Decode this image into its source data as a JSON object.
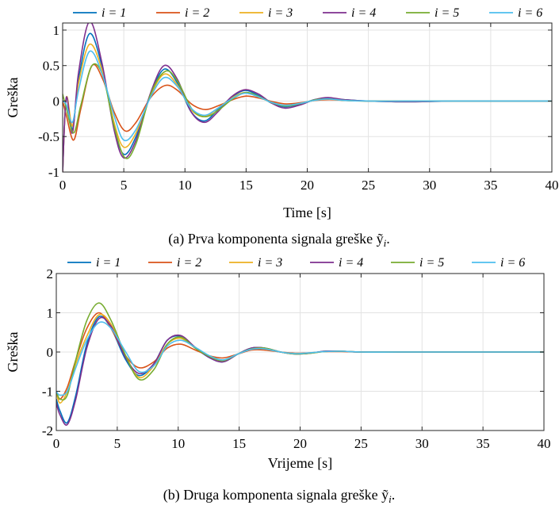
{
  "chart_data": [
    {
      "type": "line",
      "xlabel": "Time [s]",
      "ylabel": "Greška",
      "xlim": [
        0,
        40
      ],
      "ylim": [
        -1,
        1.1
      ],
      "xticks": [
        "0",
        "5",
        "10",
        "15",
        "20",
        "25",
        "30",
        "35",
        "40"
      ],
      "yticks": [
        "-1",
        "-0.5",
        "0",
        "0.5",
        "1"
      ],
      "grid": true,
      "legend_placement": "top",
      "caption": "(a) Prva komponenta signala greške ỹ",
      "caption_sub": "i",
      "series": [
        {
          "name": "i = 1",
          "x": [
            0,
            0.3,
            0.8,
            1.3,
            2.2,
            3.2,
            4.2,
            5.0,
            6.0,
            7.2,
            8.3,
            9.4,
            10.5,
            11.6,
            12.7,
            13.8,
            14.9,
            16.0,
            17.1,
            18.2,
            19.5,
            20.6,
            21.7,
            23.0,
            25,
            28,
            32,
            36,
            40
          ],
          "y": [
            -1.0,
            0.05,
            -0.4,
            0.3,
            0.95,
            0.5,
            -0.35,
            -0.75,
            -0.5,
            0.1,
            0.45,
            0.25,
            -0.15,
            -0.28,
            -0.12,
            0.05,
            0.15,
            0.08,
            -0.03,
            -0.08,
            -0.04,
            0.02,
            0.04,
            0.02,
            0.0,
            -0.01,
            0.0,
            0.0,
            0.0
          ]
        },
        {
          "name": "i = 2",
          "x": [
            0,
            0.3,
            0.9,
            1.5,
            2.4,
            3.3,
            4.2,
            5.1,
            6.0,
            7.2,
            8.4,
            9.4,
            10.6,
            11.7,
            12.8,
            13.9,
            15.0,
            16.1,
            17.2,
            18.3,
            19.6,
            20.7,
            21.8,
            23.0,
            25,
            28,
            32,
            36,
            40
          ],
          "y": [
            0.0,
            -0.2,
            -0.55,
            -0.1,
            0.5,
            0.3,
            -0.15,
            -0.42,
            -0.3,
            0.05,
            0.22,
            0.15,
            -0.05,
            -0.12,
            -0.06,
            0.02,
            0.07,
            0.04,
            -0.01,
            -0.04,
            -0.02,
            0.01,
            0.02,
            0.01,
            0.0,
            0.0,
            0.0,
            0.0,
            0.0
          ]
        },
        {
          "name": "i = 3",
          "x": [
            0,
            0.3,
            0.8,
            1.3,
            2.2,
            3.2,
            4.2,
            5.0,
            6.0,
            7.2,
            8.3,
            9.4,
            10.5,
            11.6,
            12.7,
            13.8,
            14.9,
            16.0,
            17.1,
            18.2,
            19.5,
            20.6,
            21.7,
            23.0,
            25,
            28,
            32,
            36,
            40
          ],
          "y": [
            -1.0,
            0.05,
            -0.35,
            0.25,
            0.8,
            0.45,
            -0.3,
            -0.65,
            -0.45,
            0.08,
            0.38,
            0.22,
            -0.12,
            -0.22,
            -0.1,
            0.04,
            0.12,
            0.06,
            -0.02,
            -0.07,
            -0.03,
            0.01,
            0.03,
            0.01,
            0.0,
            0.0,
            0.0,
            0.0,
            0.0
          ]
        },
        {
          "name": "i = 4",
          "x": [
            0,
            0.3,
            0.8,
            1.3,
            2.2,
            3.2,
            4.2,
            5.0,
            6.0,
            7.2,
            8.3,
            9.4,
            10.5,
            11.6,
            12.7,
            13.8,
            14.9,
            16.0,
            17.1,
            18.2,
            19.5,
            20.6,
            21.7,
            23.0,
            25,
            28,
            32,
            36,
            40
          ],
          "y": [
            -1.0,
            0.05,
            -0.45,
            0.4,
            1.12,
            0.55,
            -0.4,
            -0.8,
            -0.55,
            0.12,
            0.5,
            0.3,
            -0.15,
            -0.3,
            -0.15,
            0.06,
            0.16,
            0.1,
            -0.03,
            -0.1,
            -0.05,
            0.02,
            0.05,
            0.02,
            0.0,
            -0.01,
            0.0,
            0.0,
            0.0
          ]
        },
        {
          "name": "i = 5",
          "x": [
            0,
            0.3,
            0.9,
            1.5,
            2.4,
            3.3,
            4.2,
            5.1,
            6.0,
            7.2,
            8.4,
            9.4,
            10.6,
            11.7,
            12.8,
            13.9,
            15.0,
            16.1,
            17.2,
            18.3,
            19.6,
            20.7,
            21.8,
            23.0,
            25,
            28,
            32,
            36,
            40
          ],
          "y": [
            0.1,
            -0.1,
            -0.45,
            -0.05,
            0.5,
            0.35,
            -0.35,
            -0.8,
            -0.6,
            0.1,
            0.42,
            0.28,
            -0.12,
            -0.22,
            -0.12,
            0.03,
            0.12,
            0.06,
            -0.03,
            -0.07,
            -0.03,
            0.02,
            0.03,
            0.01,
            0.0,
            0.0,
            0.0,
            0.0,
            0.0
          ]
        },
        {
          "name": "i = 6",
          "x": [
            0,
            0.3,
            0.8,
            1.3,
            2.2,
            3.2,
            4.2,
            5.0,
            6.0,
            7.2,
            8.3,
            9.4,
            10.5,
            11.6,
            12.7,
            13.8,
            14.9,
            16.0,
            17.1,
            18.2,
            19.5,
            20.6,
            21.7,
            23.0,
            25,
            28,
            32,
            36,
            40
          ],
          "y": [
            0.0,
            -0.05,
            -0.3,
            0.15,
            0.7,
            0.4,
            -0.2,
            -0.55,
            -0.4,
            0.06,
            0.33,
            0.2,
            -0.1,
            -0.2,
            -0.1,
            0.03,
            0.11,
            0.06,
            -0.02,
            -0.06,
            -0.03,
            0.01,
            0.03,
            0.01,
            0.0,
            0.0,
            0.0,
            0.0,
            0.0
          ]
        }
      ]
    },
    {
      "type": "line",
      "xlabel": "Vrijeme [s]",
      "ylabel": "Greška",
      "xlim": [
        0,
        40
      ],
      "ylim": [
        -2,
        2
      ],
      "xticks": [
        "0",
        "5",
        "10",
        "15",
        "20",
        "25",
        "30",
        "35",
        "40"
      ],
      "yticks": [
        "-2",
        "-1",
        "0",
        "1",
        "2"
      ],
      "grid": true,
      "legend_placement": "top",
      "caption": "(b) Druga komponenta signala greške ỹ",
      "caption_sub": "i",
      "series": [
        {
          "name": "i = 1",
          "x": [
            0,
            0.3,
            0.9,
            1.6,
            2.5,
            3.5,
            4.5,
            5.7,
            6.8,
            8.0,
            9.1,
            10.2,
            11.4,
            12.6,
            13.7,
            14.9,
            16.0,
            17.1,
            18.4,
            19.6,
            20.8,
            22.0,
            23.4,
            25,
            28,
            32,
            36,
            40
          ],
          "y": [
            -1.2,
            -1.5,
            -1.8,
            -1.1,
            0.2,
            0.9,
            0.6,
            -0.2,
            -0.6,
            -0.3,
            0.3,
            0.4,
            0.1,
            -0.15,
            -0.25,
            -0.05,
            0.1,
            0.1,
            0.0,
            -0.05,
            -0.03,
            0.02,
            0.02,
            0.0,
            0.0,
            0.0,
            0.0,
            0.0
          ]
        },
        {
          "name": "i = 2",
          "x": [
            0,
            0.3,
            0.9,
            1.6,
            2.5,
            3.5,
            4.5,
            5.7,
            6.8,
            8.0,
            9.1,
            10.2,
            11.4,
            12.6,
            13.7,
            14.9,
            16.0,
            17.1,
            18.4,
            19.6,
            20.8,
            22.0,
            23.4,
            25,
            28,
            32,
            36,
            40
          ],
          "y": [
            -1.0,
            -1.2,
            -0.9,
            -0.2,
            0.6,
            1.0,
            0.6,
            -0.1,
            -0.4,
            -0.25,
            0.1,
            0.2,
            0.05,
            -0.1,
            -0.15,
            -0.05,
            0.05,
            0.05,
            0.0,
            -0.03,
            -0.02,
            0.01,
            0.01,
            0.0,
            0.0,
            0.0,
            0.0,
            0.0
          ]
        },
        {
          "name": "i = 3",
          "x": [
            0,
            0.3,
            0.9,
            1.6,
            2.5,
            3.5,
            4.5,
            5.7,
            6.8,
            8.0,
            9.1,
            10.2,
            11.4,
            12.6,
            13.7,
            14.9,
            16.0,
            17.1,
            18.4,
            19.6,
            20.8,
            22.0,
            23.4,
            25,
            28,
            32,
            36,
            40
          ],
          "y": [
            -1.0,
            -1.3,
            -1.0,
            -0.3,
            0.4,
            0.95,
            0.7,
            -0.1,
            -0.65,
            -0.35,
            0.2,
            0.35,
            0.1,
            -0.12,
            -0.22,
            -0.05,
            0.08,
            0.08,
            0.0,
            -0.04,
            -0.03,
            0.01,
            0.02,
            0.0,
            0.0,
            0.0,
            0.0,
            0.0
          ]
        },
        {
          "name": "i = 4",
          "x": [
            0,
            0.3,
            0.9,
            1.6,
            2.5,
            3.5,
            4.5,
            5.7,
            6.8,
            8.0,
            9.1,
            10.2,
            11.4,
            12.6,
            13.7,
            14.9,
            16.0,
            17.1,
            18.4,
            19.6,
            20.8,
            22.0,
            23.4,
            25,
            28,
            32,
            36,
            40
          ],
          "y": [
            -1.3,
            -1.6,
            -1.85,
            -1.2,
            0.1,
            0.85,
            0.65,
            -0.15,
            -0.55,
            -0.3,
            0.3,
            0.42,
            0.12,
            -0.15,
            -0.25,
            -0.05,
            0.1,
            0.1,
            0.0,
            -0.05,
            -0.03,
            0.02,
            0.02,
            0.0,
            0.0,
            0.0,
            0.0,
            0.0
          ]
        },
        {
          "name": "i = 5",
          "x": [
            0,
            0.3,
            0.9,
            1.6,
            2.5,
            3.5,
            4.5,
            5.7,
            6.8,
            8.0,
            9.1,
            10.2,
            11.4,
            12.6,
            13.7,
            14.9,
            16.0,
            17.1,
            18.4,
            19.6,
            20.8,
            22.0,
            23.4,
            25,
            28,
            32,
            36,
            40
          ],
          "y": [
            -1.0,
            -1.2,
            -1.1,
            -0.2,
            0.8,
            1.25,
            0.8,
            -0.1,
            -0.7,
            -0.45,
            0.2,
            0.38,
            0.1,
            -0.12,
            -0.22,
            -0.05,
            0.08,
            0.1,
            0.0,
            -0.05,
            -0.03,
            0.01,
            0.02,
            0.0,
            0.0,
            0.0,
            0.0,
            0.0
          ]
        },
        {
          "name": "i = 6",
          "x": [
            0,
            0.3,
            0.9,
            1.6,
            2.5,
            3.5,
            4.5,
            5.7,
            6.8,
            8.0,
            9.1,
            10.2,
            11.4,
            12.6,
            13.7,
            14.9,
            16.0,
            17.1,
            18.4,
            19.6,
            20.8,
            22.0,
            23.4,
            25,
            28,
            32,
            36,
            40
          ],
          "y": [
            -1.0,
            -1.1,
            -1.0,
            -0.4,
            0.3,
            0.75,
            0.6,
            0.0,
            -0.5,
            -0.35,
            0.15,
            0.3,
            0.12,
            -0.1,
            -0.2,
            -0.05,
            0.07,
            0.08,
            0.0,
            -0.04,
            -0.02,
            0.01,
            0.02,
            0.0,
            0.0,
            0.0,
            0.0,
            0.0
          ]
        }
      ]
    }
  ],
  "colors": [
    "#0072BD",
    "#D95319",
    "#EDB120",
    "#7E2F8E",
    "#77AC30",
    "#4DBEEE"
  ]
}
